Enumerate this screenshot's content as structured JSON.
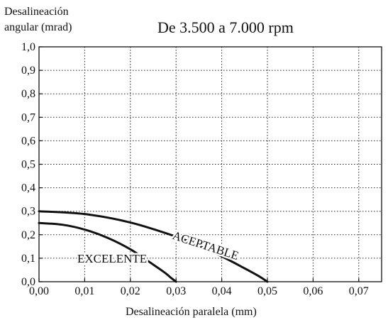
{
  "chart_data": {
    "type": "line",
    "title": "De 3.500 a 7.000 rpm",
    "ylabel_line1": "Desalineación",
    "ylabel_line2": "angular (mrad)",
    "xlabel": "Desalineación paralela (mm)",
    "xlim": [
      0,
      0.075
    ],
    "ylim": [
      0,
      1.0
    ],
    "xticks": [
      0.0,
      0.01,
      0.02,
      0.03,
      0.04,
      0.05,
      0.06,
      0.07
    ],
    "xtick_labels": [
      "0,00",
      "0,01",
      "0,02",
      "0,03",
      "0,04",
      "0,05",
      "0,06",
      "0,07"
    ],
    "yticks": [
      0.0,
      0.1,
      0.2,
      0.3,
      0.4,
      0.5,
      0.6,
      0.7,
      0.8,
      0.9,
      1.0
    ],
    "ytick_labels": [
      "0,0",
      "0,1",
      "0,2",
      "0,3",
      "0,4",
      "0,5",
      "0,6",
      "0,7",
      "0,8",
      "0,9",
      "1,0"
    ],
    "grid": true,
    "series": [
      {
        "name": "EXCELENTE",
        "color": "#111111",
        "x": [
          0.0,
          0.005,
          0.01,
          0.015,
          0.02,
          0.025,
          0.0275,
          0.029,
          0.03
        ],
        "y": [
          0.25,
          0.243,
          0.222,
          0.187,
          0.138,
          0.073,
          0.039,
          0.015,
          0.0
        ]
      },
      {
        "name": "ACEPTABLE",
        "color": "#111111",
        "x": [
          0.0,
          0.01,
          0.02,
          0.03,
          0.035,
          0.04,
          0.045,
          0.048,
          0.05
        ],
        "y": [
          0.3,
          0.288,
          0.252,
          0.192,
          0.153,
          0.108,
          0.057,
          0.025,
          0.0
        ]
      }
    ],
    "annotations": [
      {
        "text": "EXCELENTE",
        "x": 0.016,
        "y": 0.1,
        "rotate": 0
      },
      {
        "text": "ACEPTABLE",
        "x": 0.0365,
        "y": 0.155,
        "rotate": 18
      }
    ]
  }
}
